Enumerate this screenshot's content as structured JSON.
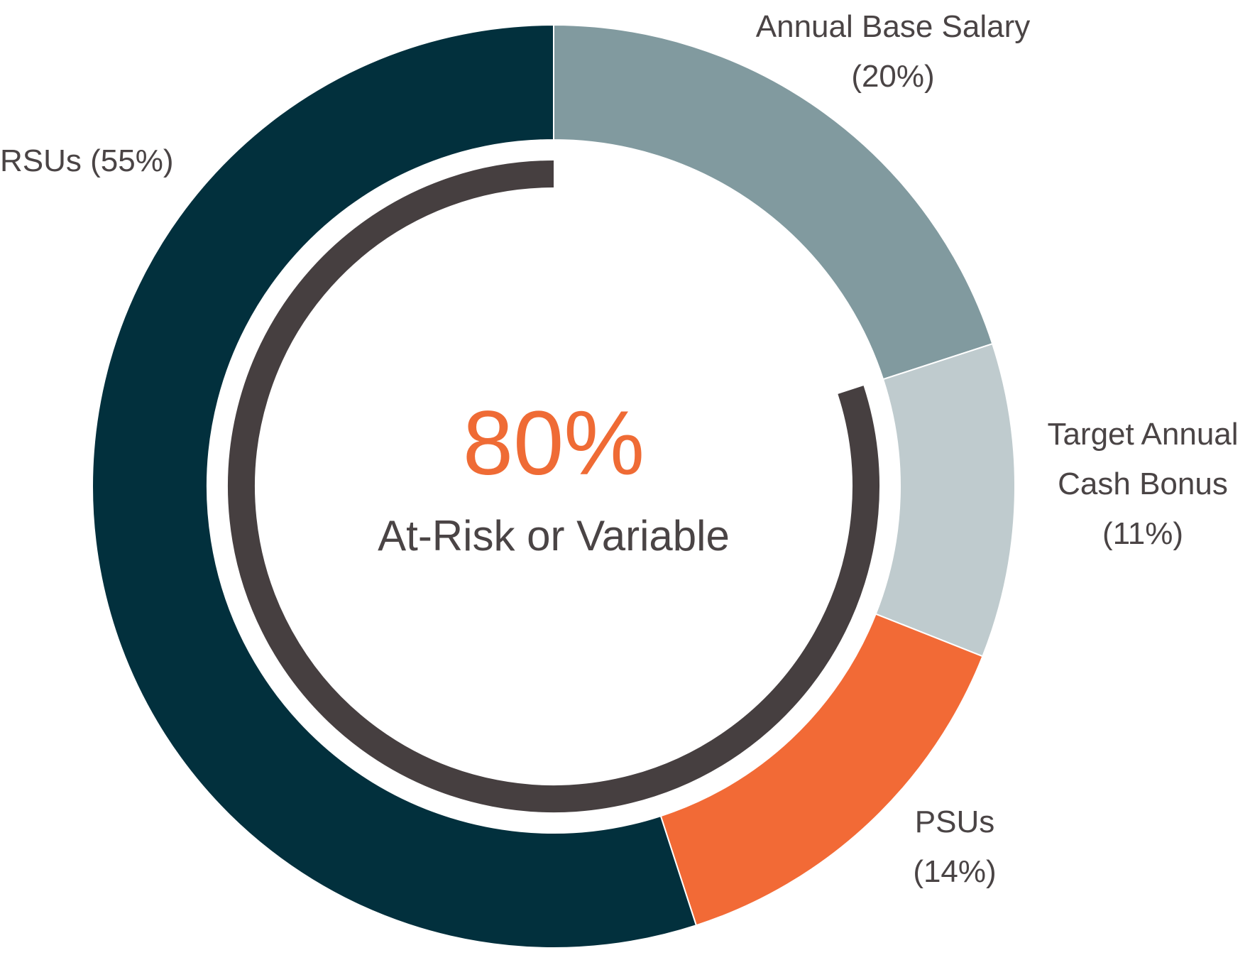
{
  "chart_data": {
    "type": "pie",
    "variant": "donut",
    "start": "top-12-oclock",
    "direction": "clockwise",
    "slices": [
      {
        "label_lines": [
          "Annual Base Salary",
          "(20%)"
        ],
        "value": 20,
        "color": "#819a9f"
      },
      {
        "label_lines": [
          "Target Annual",
          "Cash Bonus",
          "(11%)"
        ],
        "value": 11,
        "color": "#bfcbce"
      },
      {
        "label_lines": [
          "PSUs",
          "(14%)"
        ],
        "value": 14,
        "color": "#f26a36"
      },
      {
        "label_lines": [
          "RSUs (55%)"
        ],
        "value": 55,
        "color": "#02303d"
      }
    ],
    "center": {
      "value": "80%",
      "caption": "At-Risk or Variable",
      "value_color": "#ef6b35"
    },
    "inner_arc": {
      "fraction": 0.8,
      "color": "#463f40",
      "description": "spans at-risk portion (bonus, PSUs, RSUs)"
    }
  }
}
